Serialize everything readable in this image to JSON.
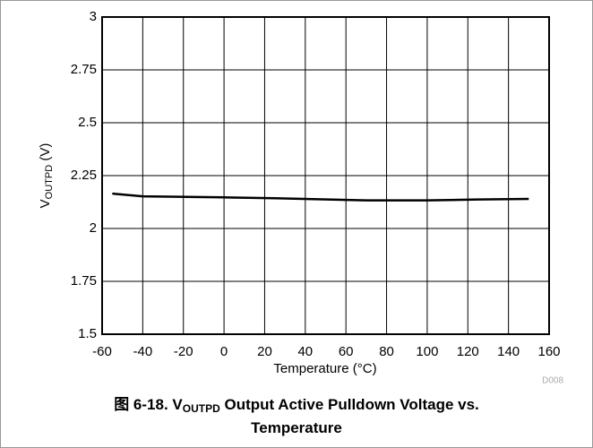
{
  "chart_data": {
    "type": "line",
    "ylabel": {
      "main": "V",
      "sub": "OUTPD",
      "unit": " (V)"
    },
    "xlabel": "Temperature (°C)",
    "code": "D008",
    "caption": {
      "prefix": "图 6-18. V",
      "sub": "OUTPD",
      "rest": " Output Active Pulldown Voltage vs. Temperature"
    },
    "x": [
      -55,
      -40,
      0,
      25,
      70,
      100,
      125,
      150
    ],
    "series": [
      {
        "color": "#000000",
        "values": [
          2.165,
          2.152,
          2.147,
          2.143,
          2.133,
          2.133,
          2.137,
          2.14
        ]
      }
    ],
    "xlim": [
      -60,
      160
    ],
    "xticks": [
      -60,
      -40,
      -20,
      0,
      20,
      40,
      60,
      80,
      100,
      120,
      140,
      160
    ],
    "ylim": [
      1.5,
      3
    ],
    "yticks": [
      1.5,
      1.75,
      2,
      2.25,
      2.5,
      2.75,
      3
    ],
    "grid": true
  }
}
